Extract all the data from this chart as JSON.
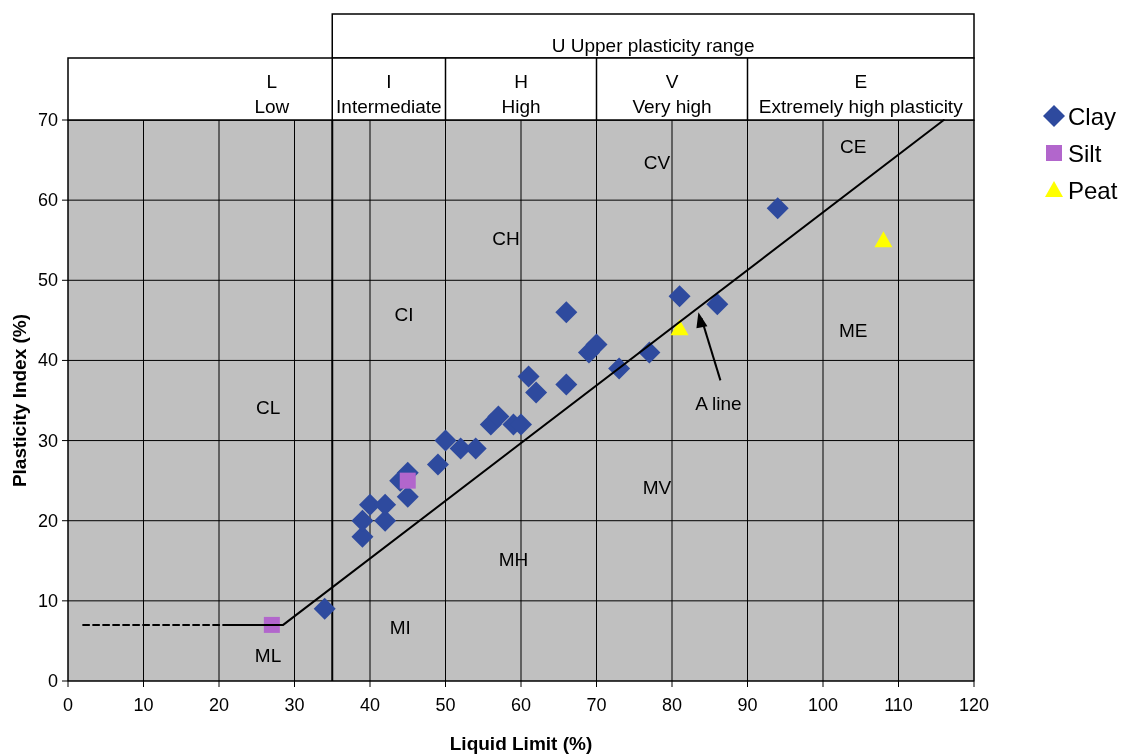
{
  "chart_data": {
    "type": "scatter",
    "xlabel": "Liquid Limit (%)",
    "ylabel": "Plasticity Index (%)",
    "xlim": [
      0,
      120
    ],
    "xticks": [
      0,
      10,
      20,
      30,
      40,
      50,
      60,
      70,
      80,
      90,
      100,
      110,
      120
    ],
    "ylim": [
      0,
      70
    ],
    "yticks": [
      0,
      10,
      20,
      30,
      40,
      50,
      60,
      70
    ],
    "grid": true,
    "legend": "top right",
    "series": [
      {
        "name": "Clay",
        "color": "#2e4a9e",
        "marker": "diamond",
        "x": [
          34,
          39,
          39,
          40,
          42,
          42,
          44,
          45,
          45,
          49,
          50,
          52,
          54,
          56,
          57,
          59,
          60,
          61,
          62,
          66,
          66,
          69,
          70,
          73,
          77,
          81,
          86,
          94
        ],
        "values": [
          9,
          18,
          20,
          22,
          20,
          22,
          25,
          26,
          23,
          27,
          30,
          29,
          29,
          32,
          33,
          32,
          32,
          38,
          36,
          37,
          46,
          41,
          42,
          39,
          41,
          48,
          47,
          59
        ]
      },
      {
        "name": "Silt",
        "color": "#b266cc",
        "marker": "square",
        "x": [
          27,
          45
        ],
        "values": [
          7,
          25
        ]
      },
      {
        "name": "Peat",
        "color": "#ffff00",
        "marker": "triangle",
        "x": [
          81,
          108
        ],
        "values": [
          44,
          55
        ]
      },
      {
        "type": "line",
        "color": "#000000",
        "marker": "none",
        "line_style": "solid",
        "x": [
          21,
          28.5,
          116
        ],
        "values": [
          7,
          7,
          70
        ]
      },
      {
        "type": "line",
        "color": "#000000",
        "marker": "none",
        "line_style": "dashed",
        "x": [
          2,
          21
        ],
        "values": [
          7,
          7
        ]
      }
    ],
    "ref_lines": [
      {
        "axis": "x",
        "value": 35,
        "color": "#000000"
      }
    ],
    "annotations": [
      "U Upper plasticity range",
      "L",
      "Low",
      "I",
      "Intermediate",
      "H",
      "High",
      "V",
      "Very high",
      "E",
      "Extremely high plasticity",
      "CL",
      "CI",
      "CH",
      "CV",
      "CE",
      "ML",
      "MI",
      "MH",
      "MV",
      "ME",
      {
        "text": "A line",
        "x": 83.5,
        "y": 46
      }
    ]
  }
}
